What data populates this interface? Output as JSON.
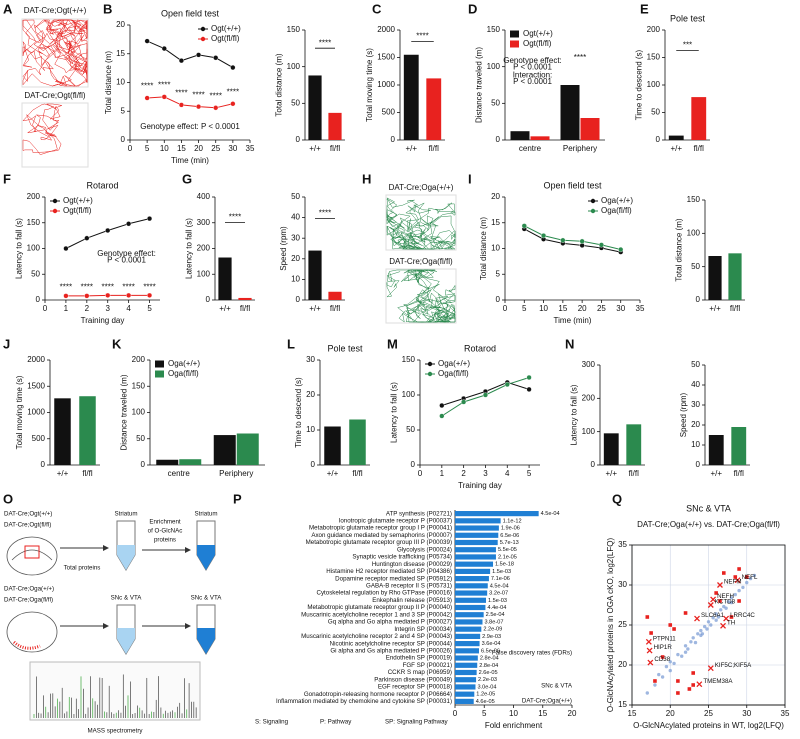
{
  "images": [
    {
      "panel": "A",
      "labels": [
        "DAT-Cre;Ogt(+/+)",
        "DAT-Cre;Ogt(fl/fl)"
      ],
      "color": "#e8221f"
    },
    {
      "panel": "H",
      "labels": [
        "DAT-Cre;Oga(+/+)",
        "DAT-Cre;Oga(fl/fl)"
      ],
      "color": "#2b8a4e"
    }
  ],
  "diagram": {
    "panel": "O",
    "labels": [
      "DAT-Cre;Ogt(+/+)",
      "DAT-Cre;Ogt(fl/fl)",
      "Striatum",
      "Total proteins",
      "Enrichment",
      "of O-GlcNAc",
      "proteins",
      "Striatum",
      "DAT-Cre;Oga(+/+)",
      "DAT-Cre;Oga(fl/fl)",
      "SNc & VTA",
      "SNc & VTA",
      "MASS spectrometry"
    ]
  },
  "chart_data": [
    {
      "panel": "B",
      "type": "line",
      "title": "Open field test",
      "xlabel": "Time (min)",
      "ylabel": "Total distance (m)",
      "x": [
        5,
        10,
        15,
        20,
        25,
        30
      ],
      "series": [
        {
          "name": "Ogt(+/+)",
          "color": "#111111",
          "values": [
            17.2,
            15.9,
            13.8,
            14.8,
            14.3,
            12.6
          ]
        },
        {
          "name": "Ogt(fl/fl)",
          "color": "#e8221f",
          "values": [
            7.3,
            7.5,
            6.1,
            5.8,
            5.6,
            6.3
          ]
        }
      ],
      "xlim": [
        0,
        35
      ],
      "xticks": [
        0,
        5,
        10,
        15,
        20,
        25,
        30,
        35
      ],
      "ylim": [
        0,
        20
      ],
      "yticks": [
        0,
        5,
        10,
        15,
        20
      ],
      "legend": "top-right",
      "annotations": [
        {
          "text": "****",
          "x": 5,
          "y": 9.3
        },
        {
          "text": "****",
          "x": 10,
          "y": 9.5
        },
        {
          "text": "****",
          "x": 15,
          "y": 8.1
        },
        {
          "text": "****",
          "x": 20,
          "y": 7.8
        },
        {
          "text": "****",
          "x": 25,
          "y": 7.6
        },
        {
          "text": "****",
          "x": 30,
          "y": 8.3
        },
        {
          "text": "Genotype effect: P < 0.0001",
          "x": 17.5,
          "y": 2.3
        }
      ]
    },
    {
      "type": "bar",
      "ylabel": "Total distance (m)",
      "categories": [
        "+/+",
        "fl/fl"
      ],
      "values": [
        88,
        37
      ],
      "colors": [
        "#111111",
        "#e8221f"
      ],
      "ylim": [
        0,
        150
      ],
      "yticks": [
        0,
        50,
        100,
        150
      ],
      "annotations": [
        {
          "text": "****",
          "x": 0.5,
          "y": 132
        }
      ]
    },
    {
      "panel": "C",
      "type": "bar",
      "ylabel": "Total moving time (s)",
      "categories": [
        "+/+",
        "fl/fl"
      ],
      "values": [
        1550,
        1120
      ],
      "colors": [
        "#111111",
        "#e8221f"
      ],
      "ylim": [
        0,
        2000
      ],
      "yticks": [
        0,
        500,
        1000,
        1500,
        2000
      ],
      "annotations": [
        {
          "text": "****",
          "x": 0.5,
          "y": 1880
        }
      ]
    },
    {
      "panel": "D",
      "type": "bar",
      "ylabel": "Distance traveled (m)",
      "categories": [
        "centre",
        "Periphery"
      ],
      "series": [
        {
          "name": "Ogt(+/+)",
          "color": "#111111",
          "values": [
            12,
            75
          ]
        },
        {
          "name": "Ogt(fl/fl)",
          "color": "#e8221f",
          "values": [
            5,
            30
          ]
        }
      ],
      "ylim": [
        0,
        150
      ],
      "yticks": [
        0,
        50,
        100,
        150
      ],
      "legend": "top-left",
      "annotations": [
        {
          "text": "Genotype effect:",
          "x": 0.05,
          "y": 108
        },
        {
          "text": "P < 0.0001",
          "x": 0.05,
          "y": 99
        },
        {
          "text": "Interaction:",
          "x": 0.05,
          "y": 88
        },
        {
          "text": "P < 0.0001",
          "x": 0.05,
          "y": 79
        },
        {
          "text": "****",
          "x": 1,
          "y": 112
        }
      ]
    },
    {
      "panel": "E",
      "type": "bar",
      "title": "Pole test",
      "ylabel": "Time to descend (s)",
      "categories": [
        "+/+",
        "fl/fl"
      ],
      "values": [
        8,
        78
      ],
      "colors": [
        "#111111",
        "#e8221f"
      ],
      "ylim": [
        0,
        200
      ],
      "yticks": [
        0,
        50,
        100,
        150,
        200
      ],
      "annotations": [
        {
          "text": "***",
          "x": 0.5,
          "y": 172
        }
      ]
    },
    {
      "panel": "F",
      "type": "line",
      "title": "Rotarod",
      "xlabel": "Training day",
      "ylabel": "Latency to fall (s)",
      "x": [
        1,
        2,
        3,
        4,
        5
      ],
      "series": [
        {
          "name": "Ogt(+/+)",
          "color": "#111111",
          "values": [
            100,
            120,
            135,
            148,
            158
          ]
        },
        {
          "name": "Ogt(fl/fl)",
          "color": "#e8221f",
          "values": [
            8,
            8,
            9,
            9,
            9
          ]
        }
      ],
      "xlim": [
        0,
        5.5
      ],
      "xticks": [
        0,
        1,
        2,
        3,
        4,
        5
      ],
      "ylim": [
        0,
        200
      ],
      "yticks": [
        0,
        50,
        100,
        150,
        200
      ],
      "legend": "top-left",
      "annotations": [
        {
          "text": "Genotype effect:",
          "x": 3.9,
          "y": 90
        },
        {
          "text": "P < 0.0001",
          "x": 3.9,
          "y": 77
        },
        {
          "text": "****",
          "x": 1,
          "y": 24
        },
        {
          "text": "****",
          "x": 2,
          "y": 24
        },
        {
          "text": "****",
          "x": 3,
          "y": 24
        },
        {
          "text": "****",
          "x": 4,
          "y": 24
        },
        {
          "text": "****",
          "x": 5,
          "y": 24
        }
      ]
    },
    {
      "panel": "G",
      "type": "bar",
      "ylabel": "Latency to fall (s)",
      "categories": [
        "+/+",
        "fl/fl"
      ],
      "values": [
        165,
        8
      ],
      "colors": [
        "#111111",
        "#e8221f"
      ],
      "ylim": [
        0,
        400
      ],
      "yticks": [
        0,
        100,
        200,
        300,
        400
      ],
      "annotations": [
        {
          "text": "****",
          "x": 0.5,
          "y": 320
        }
      ]
    },
    {
      "type": "bar",
      "ylabel": "Speed (rpm)",
      "categories": [
        "+/+",
        "fl/fl"
      ],
      "values": [
        24,
        4
      ],
      "colors": [
        "#111111",
        "#e8221f"
      ],
      "ylim": [
        0,
        50
      ],
      "yticks": [
        0,
        10,
        20,
        30,
        40,
        50
      ],
      "annotations": [
        {
          "text": "****",
          "x": 0.5,
          "y": 42
        }
      ]
    },
    {
      "panel": "I",
      "type": "line",
      "title": "Open field test",
      "xlabel": "Time (min)",
      "ylabel": "Total distance (m)",
      "x": [
        5,
        10,
        15,
        20,
        25,
        30
      ],
      "series": [
        {
          "name": "Oga(+/+)",
          "color": "#111111",
          "values": [
            13.8,
            11.8,
            11.0,
            10.6,
            10.1,
            9.3
          ]
        },
        {
          "name": "Oga(fl/fl)",
          "color": "#2b8a4e",
          "values": [
            14.4,
            12.5,
            11.6,
            11.4,
            10.7,
            9.8
          ]
        }
      ],
      "xlim": [
        0,
        35
      ],
      "xticks": [
        0,
        5,
        10,
        15,
        20,
        25,
        30,
        35
      ],
      "ylim": [
        0,
        20
      ],
      "yticks": [
        0,
        5,
        10,
        15,
        20
      ],
      "legend": "top-right"
    },
    {
      "type": "bar",
      "ylabel": "Total distance (m)",
      "categories": [
        "+/+",
        "fl/fl"
      ],
      "values": [
        66,
        70
      ],
      "colors": [
        "#111111",
        "#2b8a4e"
      ],
      "ylim": [
        0,
        150
      ],
      "yticks": [
        0,
        50,
        100,
        150
      ]
    },
    {
      "panel": "J",
      "type": "bar",
      "ylabel": "Total moving time (s)",
      "categories": [
        "+/+",
        "fl/fl"
      ],
      "values": [
        1270,
        1310
      ],
      "colors": [
        "#111111",
        "#2b8a4e"
      ],
      "ylim": [
        0,
        2000
      ],
      "yticks": [
        0,
        500,
        1000,
        1500,
        2000
      ]
    },
    {
      "panel": "K",
      "type": "bar",
      "ylabel": "Distance traveled (m)",
      "categories": [
        "centre",
        "Periphery"
      ],
      "series": [
        {
          "name": "Oga(+/+)",
          "color": "#111111",
          "values": [
            10,
            57
          ]
        },
        {
          "name": "Oga(fl/fl)",
          "color": "#2b8a4e",
          "values": [
            11,
            60
          ]
        }
      ],
      "ylim": [
        0,
        200
      ],
      "yticks": [
        0,
        50,
        100,
        150,
        200
      ],
      "legend": "top-left"
    },
    {
      "panel": "L",
      "type": "bar",
      "title": "Pole test",
      "ylabel": "Time to descend (s)",
      "categories": [
        "+/+",
        "fl/fl"
      ],
      "values": [
        11,
        13
      ],
      "colors": [
        "#111111",
        "#2b8a4e"
      ],
      "ylim": [
        0,
        30
      ],
      "yticks": [
        0,
        10,
        20,
        30
      ]
    },
    {
      "panel": "M",
      "type": "line",
      "title": "Rotarod",
      "xlabel": "Training day",
      "ylabel": "Latency to fall (s)",
      "x": [
        1,
        2,
        3,
        4,
        5
      ],
      "series": [
        {
          "name": "Oga(+/+)",
          "color": "#111111",
          "values": [
            85,
            95,
            105,
            118,
            108
          ]
        },
        {
          "name": "Oga(fl/fl)",
          "color": "#2b8a4e",
          "values": [
            70,
            90,
            100,
            115,
            125
          ]
        }
      ],
      "xlim": [
        0,
        5.5
      ],
      "xticks": [
        0,
        1,
        2,
        3,
        4,
        5
      ],
      "ylim": [
        0,
        150
      ],
      "yticks": [
        0,
        50,
        100,
        150
      ],
      "legend": "top-left"
    },
    {
      "panel": "N",
      "type": "bar",
      "ylabel": "Latency to fall (s)",
      "categories": [
        "+/+",
        "fl/fl"
      ],
      "values": [
        95,
        122
      ],
      "colors": [
        "#111111",
        "#2b8a4e"
      ],
      "ylim": [
        0,
        300
      ],
      "yticks": [
        0,
        100,
        200,
        300
      ]
    },
    {
      "type": "bar",
      "ylabel": "Speed (rpm)",
      "categories": [
        "+/+",
        "fl/fl"
      ],
      "values": [
        15,
        19
      ],
      "colors": [
        "#111111",
        "#2b8a4e"
      ],
      "ylim": [
        0,
        50
      ],
      "yticks": [
        0,
        10,
        20,
        30,
        40,
        50
      ]
    },
    {
      "panel": "P",
      "type": "barh",
      "xlabel": "Fold enrichment",
      "color": "#1f7fd4",
      "xlim": [
        0,
        20
      ],
      "xticks": [
        0,
        5,
        10,
        15,
        20
      ],
      "categories": [
        "ATP synthesis (P02721)",
        "Ionotropic glutamate receptor P (P00037)",
        "Metabotropic glutamate receptor group I P (P00041)",
        "Axon guidance mediated by semaphorins (P00007)",
        "Metabotropic glutamate receptor group III P (P00039)",
        "Glycolysis (P00024)",
        "Synaptic vesicle trafficking (P05734)",
        "Huntington disease (P00029)",
        "Histamine H2 receptor mediated SP (P04386)",
        "Dopamine receptor mediated SP (P05912)",
        "GABA-B receptor II S (P05731)",
        "Cytoskeletal regulation by Rho GTPase (P00016)",
        "Enkephalin release (P05913)",
        "Metabotropic glutamate receptor group II P (P00040)",
        "Muscarinic acetylcholine receptor 1 and 3 SP (P00042)",
        "Gq alpha and Go alpha mediated P (P00027)",
        "Integrin SP (P00034)",
        "Muscarinic acetylcholine receptor 2 and 4 SP (P00043)",
        "Nicotinic acetylcholine receptor SP (P00044)",
        "Gi alpha and Gs alpha mediated P (P00026)",
        "Endothelin SP (P00019)",
        "FGF SP (P00021)",
        "CCKR S map (P06959)",
        "Parkinson disease (P00049)",
        "EGF receptor SP (P00018)",
        "Gonadotropin-releasing hormone receptor P (P06664)",
        "Inflammation mediated by chemokine and cytokine SP (P00031)"
      ],
      "values": [
        14.3,
        7.8,
        7.5,
        7.4,
        7.3,
        7.0,
        7.0,
        6.5,
        6.0,
        5.8,
        5.6,
        5.5,
        5.3,
        5.2,
        4.9,
        4.7,
        4.5,
        4.3,
        4.2,
        4.1,
        3.9,
        3.8,
        3.7,
        3.6,
        3.5,
        3.3,
        3.2
      ],
      "fdr": [
        "4.5e-04",
        "1.1e-12",
        "1.9e-06",
        "6.5e-06",
        "5.7e-13",
        "5.5e-05",
        "2.1e-05",
        "1.5e-18",
        "1.5e-03",
        "7.1e-06",
        "4.5e-04",
        "3.2e-07",
        "1.5e-03",
        "4.4e-04",
        "2.5e-04",
        "3.8e-07",
        "2.2e-09",
        "2.9e-03",
        "3.6e-04",
        "6.5e-06",
        "2.8e-04",
        "2.8e-04",
        "2.6e-05",
        "2.2e-03",
        "3.0e-04",
        "1.2e-05",
        "4.6e-05"
      ],
      "notes": [
        "False discovery rates (FDRs)",
        "SNc & VTA",
        "DAT-Cre;Oga(+/+)"
      ],
      "footnote": [
        "S: Signaling",
        "P: Pathway",
        "SP: Signaling Pathway"
      ]
    },
    {
      "panel": "Q",
      "type": "scatter",
      "title": "SNc & VTA",
      "subtitle": "DAT-Cre;Oga(+/+) vs. DAT-Cre;Oga(fl/fl)",
      "xlabel": "O-GlcNAcylated proteins in WT, log2(LFQ)",
      "ylabel": "O-GlcNAcylated proteins in OGA cKO, log2(LFQ)",
      "xlim": [
        15,
        35
      ],
      "xticks": [
        15,
        20,
        25,
        30,
        35
      ],
      "ylim": [
        15,
        35
      ],
      "yticks": [
        15,
        20,
        25,
        30,
        35
      ],
      "grid": true,
      "series": [
        {
          "color": "#7f9fd6",
          "marker": "circle",
          "x": [
            17,
            18,
            18.5,
            19,
            19.5,
            20,
            20.5,
            21,
            21.5,
            22,
            22.3,
            22.7,
            23,
            23.3,
            23.6,
            24,
            24.2,
            24.5,
            24.8,
            25,
            25.3,
            25.6,
            26,
            26.3,
            26.6,
            27,
            27.3,
            27.6,
            28,
            28.5,
            29,
            29.5,
            30,
            30.5,
            31,
            20,
            22,
            24,
            26,
            28
          ],
          "values": [
            16.5,
            17.5,
            18.8,
            18.5,
            19.8,
            20.4,
            20.2,
            21.3,
            21.1,
            22.4,
            22.0,
            22.9,
            23.4,
            22.8,
            23.9,
            24.3,
            23.9,
            24.8,
            24.5,
            25.4,
            25.0,
            25.9,
            26.4,
            26.0,
            26.9,
            27.3,
            27.1,
            27.9,
            28.4,
            28.8,
            29.3,
            29.7,
            30.3,
            30.8,
            31.2,
            19.3,
            21.6,
            23.7,
            25.6,
            27.8
          ]
        },
        {
          "color": "#e8221f",
          "marker": "square",
          "x": [
            17,
            17.5,
            20,
            20.5,
            19,
            21,
            22.5,
            23,
            21,
            27,
            28.5,
            29,
            26,
            29,
            28,
            22,
            18,
            26.5,
            30,
            23
          ],
          "values": [
            26,
            24,
            25,
            24.5,
            21,
            18,
            17,
            17.5,
            16.5,
            31.5,
            31,
            32,
            29,
            28,
            26,
            26.5,
            18,
            28,
            31,
            19
          ]
        },
        {
          "color": "#e8221f",
          "marker": "cross",
          "x": [
            28.8,
            26.5,
            25.6,
            25.3,
            23.5,
            27.3,
            26.9,
            17.2,
            17.3,
            17.4,
            25.3,
            23.8
          ],
          "values": [
            30.6,
            30.0,
            28.2,
            27.5,
            25.8,
            25.8,
            24.9,
            22.9,
            21.8,
            20.3,
            19.6,
            17.6
          ],
          "labels": [
            "NEFL",
            "NEFM",
            "NEFH",
            "KCTD8",
            "SLC6A1",
            "LRRC4C",
            "TH",
            "PTPN11",
            "HIP1R",
            "CD38",
            "KIF5C;KIF5A",
            "TMEM38A"
          ]
        }
      ]
    }
  ]
}
